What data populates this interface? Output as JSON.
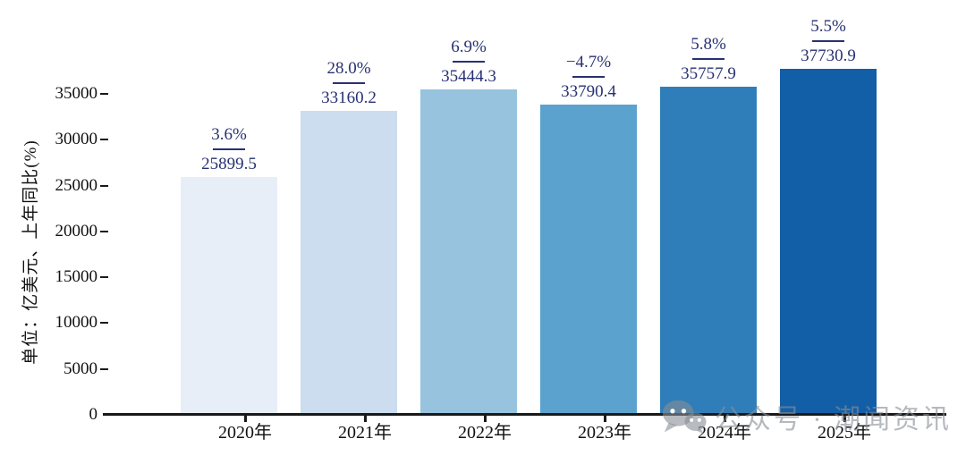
{
  "chart_data": {
    "type": "bar",
    "title": "",
    "xlabel": "",
    "ylabel": "单位：亿美元、上年同比(%)",
    "categories": [
      "2020年",
      "2021年",
      "2022年",
      "2023年",
      "2024年",
      "2025年"
    ],
    "values": [
      25899.5,
      33160.2,
      35444.3,
      33790.4,
      35757.9,
      37730.9
    ],
    "value_labels": [
      "25899.5",
      "33160.2",
      "35444.3",
      "33790.4",
      "35757.9",
      "37730.9"
    ],
    "growth_labels": [
      "3.6%",
      "28.0%",
      "6.9%",
      "−4.7%",
      "5.8%",
      "5.5%"
    ],
    "yticks": [
      0,
      5000,
      10000,
      15000,
      20000,
      25000,
      30000,
      35000
    ],
    "ylim": [
      0,
      39000
    ],
    "grid": false,
    "legend": "none",
    "bar_colors": [
      "#e7eef8",
      "#cbddee",
      "#97c3de",
      "#5ba2ce",
      "#2f7eba",
      "#125fa8"
    ],
    "annotation_color": "#283173",
    "axis_color": "#1a1a1a"
  },
  "watermark": {
    "text": "公众号 · 潮闻资讯",
    "icon": "wechat-icon",
    "color": "#888d94"
  }
}
